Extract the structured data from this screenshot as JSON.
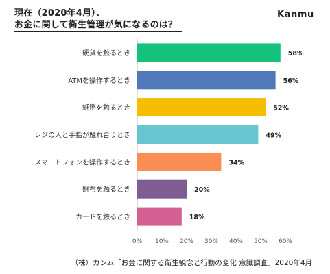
{
  "header": {
    "title_line1": "現在（2020年4月）、",
    "title_line2": "お金に関して衛生管理が気になるのは？",
    "logo": "Kanmu"
  },
  "footer": {
    "source": "（株）カンム「お金に関する衛生観念と行動の変化 意識調査」2020年4月"
  },
  "chart_data": {
    "type": "bar",
    "orientation": "horizontal",
    "categories": [
      "硬貨を触るとき",
      "ATMを操作するとき",
      "紙幣を触るとき",
      "レジの人と手指が触れ合うとき",
      "スマートフォンを操作するとき",
      "財布を触るとき",
      "カードを触るとき"
    ],
    "values": [
      58,
      56,
      52,
      49,
      34,
      20,
      18
    ],
    "value_labels": [
      "58%",
      "56%",
      "52%",
      "49%",
      "34%",
      "20%",
      "18%"
    ],
    "colors": [
      "#15c27b",
      "#4f79b8",
      "#f6be00",
      "#67c6cf",
      "#fb8e55",
      "#7e5d93",
      "#d46091"
    ],
    "xlim": [
      0,
      60
    ],
    "xticks": [
      "0%",
      "10%",
      "20%",
      "30%",
      "40%",
      "50%",
      "60%"
    ],
    "grid": false,
    "title": "",
    "xlabel": "",
    "ylabel": ""
  }
}
